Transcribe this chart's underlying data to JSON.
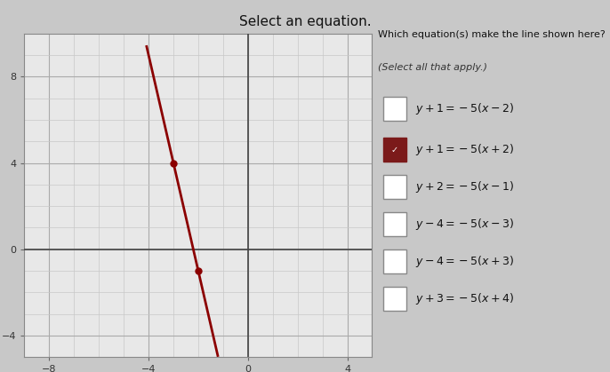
{
  "title": "Select an equation.",
  "subtitle": "Which equation(s) make the line shown here?",
  "select_label": "(Select all that apply.)",
  "options": [
    {
      "latex": "$y+1=-5(x-2)$",
      "checked": false
    },
    {
      "latex": "$y+1=-5(x+2)$",
      "checked": true
    },
    {
      "latex": "$y+2=-5(x-1)$",
      "checked": false
    },
    {
      "latex": "$y-4=-5(x-3)$",
      "checked": false
    },
    {
      "latex": "$y-4=-5(x+3)$",
      "checked": false
    },
    {
      "latex": "$y+3=-5(x+4)$",
      "checked": false
    }
  ],
  "xlim": [
    -9,
    5
  ],
  "ylim": [
    -5,
    9.5
  ],
  "xticks": [
    -8,
    -4,
    0,
    4
  ],
  "yticks": [
    -4,
    0,
    4,
    8
  ],
  "grid_color": "#c8c8c8",
  "bg_color": "#c8c8c8",
  "plot_bg_color": "#e8e8e8",
  "line_color": "#8b0000",
  "line_slope": -5,
  "line_b": -11,
  "points": [
    [
      -3,
      4
    ],
    [
      -2,
      -1
    ]
  ],
  "axis_color": "#444444",
  "checked_box_color": "#7b1a1a",
  "checked_check_color": "#ffffff",
  "unchecked_box_color": "#ffffff",
  "unchecked_border_color": "#888888"
}
